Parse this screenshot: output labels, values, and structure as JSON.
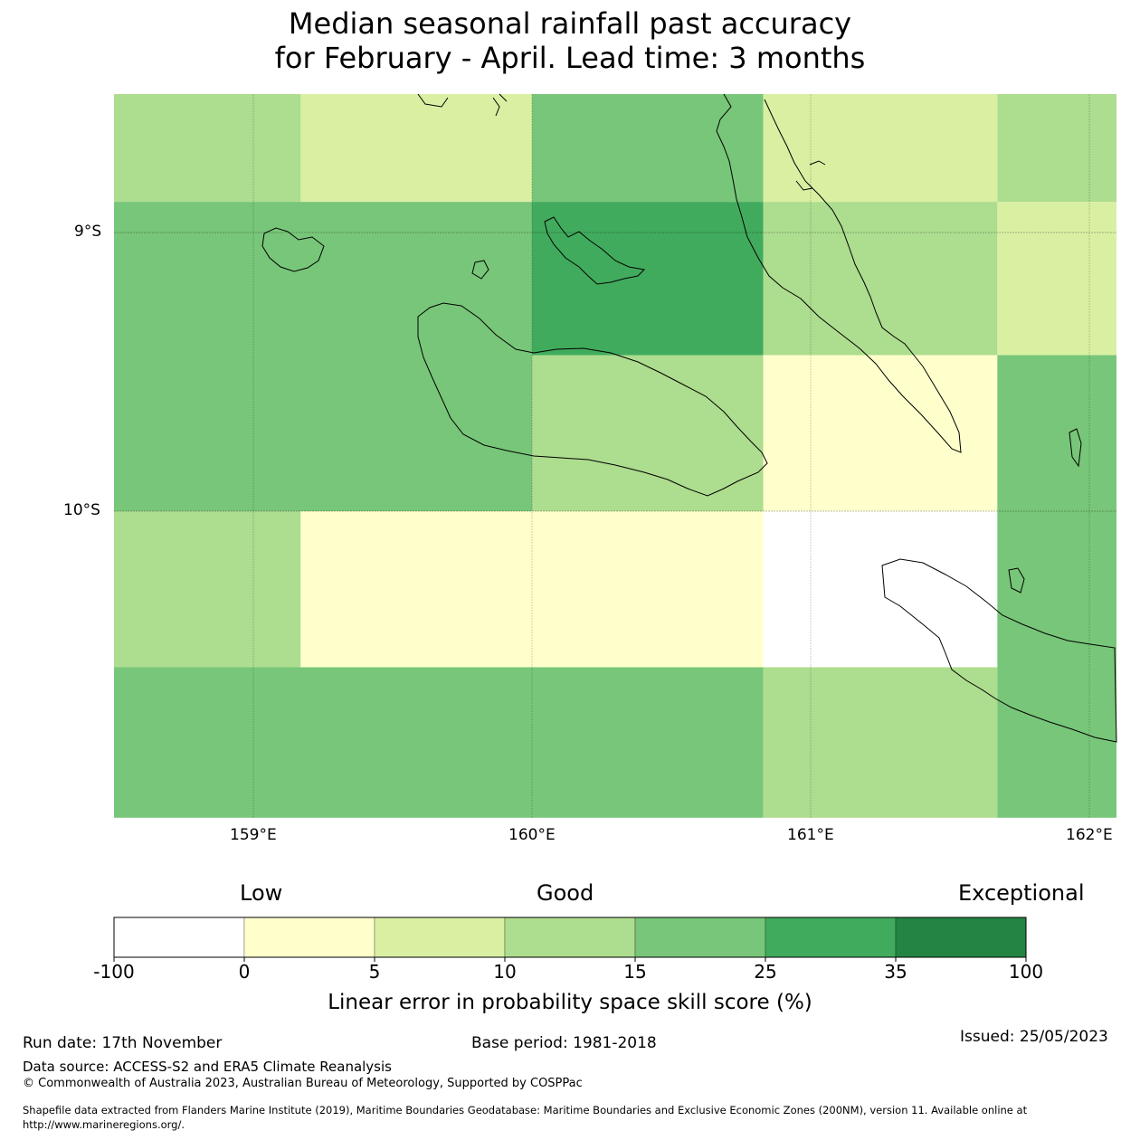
{
  "title": {
    "line1": "Median seasonal rainfall past accuracy",
    "line2": "for February - April. Lead time: 3 months"
  },
  "map": {
    "lon_labels": [
      "159°E",
      "160°E",
      "161°E",
      "162°E"
    ],
    "lat_labels": [
      "9°S",
      "10°S"
    ],
    "grid_lons": [
      159,
      160,
      161,
      162
    ],
    "grid_lats": [
      -9,
      -10
    ],
    "extent": {
      "lon_min": 158.5,
      "lon_max": 162.1,
      "lat_min": -11.1,
      "lat_max": -8.5
    },
    "cells": [
      {
        "lon0": 158.5,
        "lon1": 159.17,
        "lat0": -8.89,
        "lat1": -8.5,
        "score_class": "10-15"
      },
      {
        "lon0": 159.17,
        "lon1": 160.0,
        "lat0": -8.89,
        "lat1": -8.5,
        "score_class": "5-10"
      },
      {
        "lon0": 160.0,
        "lon1": 160.83,
        "lat0": -8.89,
        "lat1": -8.5,
        "score_class": "15-25"
      },
      {
        "lon0": 160.83,
        "lon1": 161.67,
        "lat0": -8.89,
        "lat1": -8.5,
        "score_class": "5-10"
      },
      {
        "lon0": 161.67,
        "lon1": 162.1,
        "lat0": -8.89,
        "lat1": -8.5,
        "score_class": "10-15"
      },
      {
        "lon0": 158.5,
        "lon1": 160.0,
        "lat0": -9.44,
        "lat1": -8.89,
        "score_class": "15-25"
      },
      {
        "lon0": 160.0,
        "lon1": 160.83,
        "lat0": -9.44,
        "lat1": -8.89,
        "score_class": "25-35"
      },
      {
        "lon0": 160.83,
        "lon1": 161.67,
        "lat0": -9.44,
        "lat1": -8.89,
        "score_class": "10-15"
      },
      {
        "lon0": 161.67,
        "lon1": 162.1,
        "lat0": -9.44,
        "lat1": -8.89,
        "score_class": "5-10"
      },
      {
        "lon0": 158.5,
        "lon1": 160.0,
        "lat0": -10.0,
        "lat1": -9.44,
        "score_class": "15-25"
      },
      {
        "lon0": 160.0,
        "lon1": 160.83,
        "lat0": -10.0,
        "lat1": -9.44,
        "score_class": "10-15"
      },
      {
        "lon0": 160.83,
        "lon1": 161.67,
        "lat0": -10.0,
        "lat1": -9.44,
        "score_class": "0-5"
      },
      {
        "lon0": 161.67,
        "lon1": 162.1,
        "lat0": -10.0,
        "lat1": -9.44,
        "score_class": "15-25"
      },
      {
        "lon0": 158.5,
        "lon1": 159.17,
        "lat0": -10.56,
        "lat1": -10.0,
        "score_class": "10-15"
      },
      {
        "lon0": 159.17,
        "lon1": 160.83,
        "lat0": -10.56,
        "lat1": -10.0,
        "score_class": "0-5"
      },
      {
        "lon0": 160.83,
        "lon1": 161.67,
        "lat0": -10.56,
        "lat1": -10.0,
        "score_class": "-100-0"
      },
      {
        "lon0": 161.67,
        "lon1": 162.1,
        "lat0": -10.56,
        "lat1": -10.0,
        "score_class": "15-25"
      },
      {
        "lon0": 158.5,
        "lon1": 160.83,
        "lat0": -11.1,
        "lat1": -10.56,
        "score_class": "15-25"
      },
      {
        "lon0": 160.83,
        "lon1": 161.67,
        "lat0": -11.1,
        "lat1": -10.56,
        "score_class": "10-15"
      },
      {
        "lon0": 161.67,
        "lon1": 162.1,
        "lat0": -11.1,
        "lat1": -10.56,
        "score_class": "15-25"
      }
    ]
  },
  "colorbar": {
    "category_labels": {
      "low": "Low",
      "good": "Good",
      "exceptional": "Exceptional"
    },
    "ticks": [
      "-100",
      "0",
      "5",
      "10",
      "15",
      "25",
      "35",
      "100"
    ],
    "classes": [
      {
        "range": "-100-0",
        "color": "#ffffff"
      },
      {
        "range": "0-5",
        "color": "#ffffcc"
      },
      {
        "range": "5-10",
        "color": "#d9f0a3"
      },
      {
        "range": "10-15",
        "color": "#addd8e"
      },
      {
        "range": "15-25",
        "color": "#78c679"
      },
      {
        "range": "25-35",
        "color": "#41ab5d"
      },
      {
        "range": "35-100",
        "color": "#238443"
      }
    ],
    "xlabel": "Linear error in probability space skill score (%)"
  },
  "footer": {
    "run_date": "Run date: 17th November",
    "base_period": "Base period: 1981-2018",
    "issued": "Issued: 25/05/2023",
    "data_source": "Data source: ACCESS-S2 and ERA5 Climate Reanalysis",
    "copyright": "© Commonwealth of Australia 2023, Australian Bureau of Meteorology, Supported by COSPPac",
    "shapefile_line1": "Shapefile data extracted from Flanders Marine Institute (2019), Maritime Boundaries Geodatabase: Maritime Boundaries and Exclusive Economic Zones (200NM), version 11. Available online at",
    "shapefile_line2": "http://www.marineregions.org/."
  }
}
